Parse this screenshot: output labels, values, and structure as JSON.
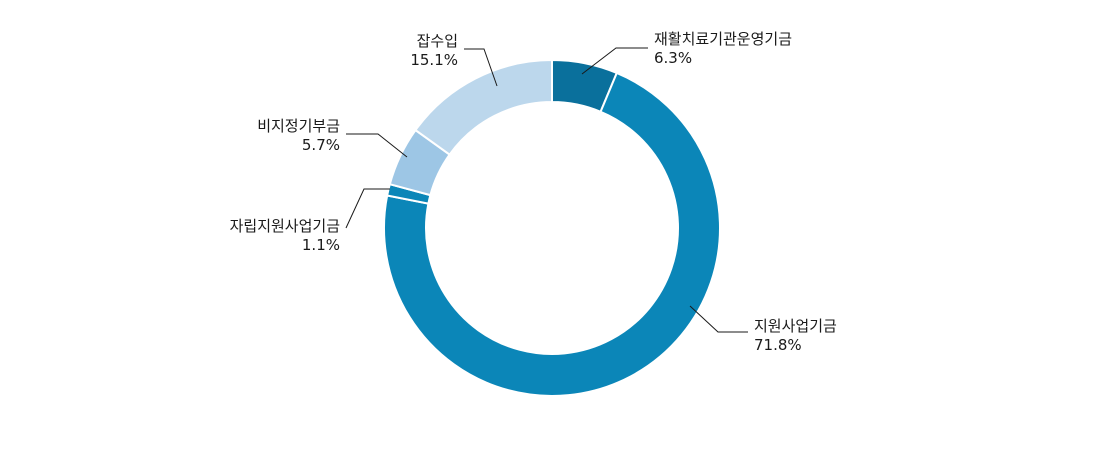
{
  "chart_data": {
    "type": "pie",
    "variant": "donut",
    "legend": "none",
    "start_angle_deg": 0,
    "direction": "clockwise",
    "slices": [
      {
        "name": "재활치료기관운영기금",
        "value": 6.3,
        "label": "6.3%",
        "color": "#0a709c"
      },
      {
        "name": "지원사업기금",
        "value": 71.8,
        "label": "71.8%",
        "color": "#0b86b8"
      },
      {
        "name": "자립지원사업기금",
        "value": 1.1,
        "label": "1.1%",
        "color": "#0b86b8"
      },
      {
        "name": "비지정기부금",
        "value": 5.7,
        "label": "5.7%",
        "color": "#9dc6e5"
      },
      {
        "name": "잡수입",
        "value": 15.1,
        "label": "15.1%",
        "color": "#bcd7ec"
      }
    ]
  }
}
